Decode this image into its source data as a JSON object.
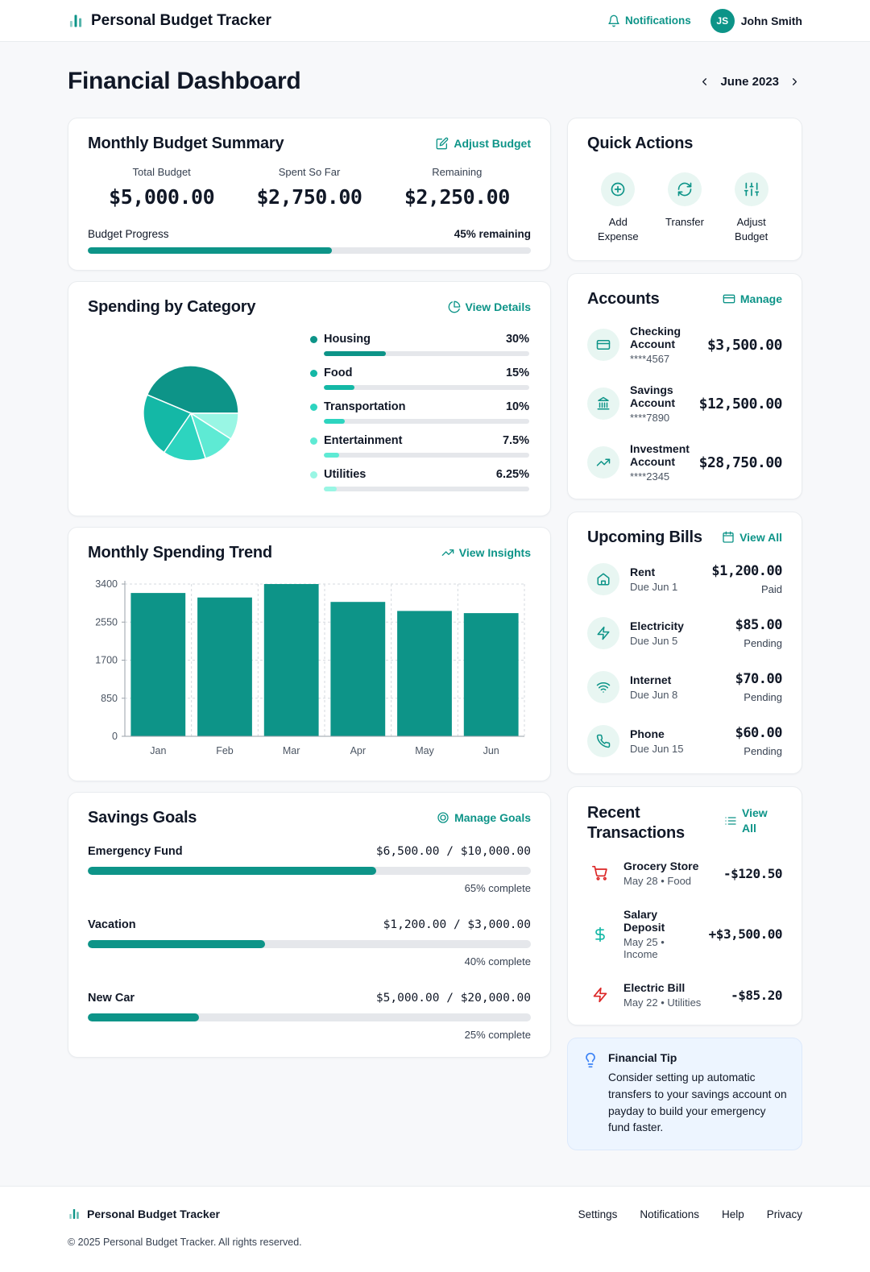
{
  "colors": {
    "primary": "#0d9488",
    "pie": [
      "#0d9488",
      "#14b8a6",
      "#2dd4bf",
      "#5eead4",
      "#99f6e4"
    ],
    "expense": "#dc2626",
    "income": "#14b8a6",
    "tip_accent": "#3b82f6"
  },
  "header": {
    "app_title": "Personal Budget Tracker",
    "notifications_label": "Notifications",
    "user_initials": "JS",
    "user_name": "John Smith"
  },
  "page": {
    "title": "Financial Dashboard",
    "month": "June 2023"
  },
  "budget_summary": {
    "title": "Monthly Budget Summary",
    "action": "Adjust Budget",
    "stats": [
      {
        "label": "Total Budget",
        "value": "$5,000.00"
      },
      {
        "label": "Spent So Far",
        "value": "$2,750.00"
      },
      {
        "label": "Remaining",
        "value": "$2,250.00"
      }
    ],
    "progress_label": "Budget Progress",
    "remaining_label": "45% remaining",
    "progress_pct": 55
  },
  "categories": {
    "title": "Spending by Category",
    "action": "View Details",
    "items": [
      {
        "label": "Housing",
        "pct_label": "30%",
        "pct": 30,
        "color": "#0d9488"
      },
      {
        "label": "Food",
        "pct_label": "15%",
        "pct": 15,
        "color": "#14b8a6"
      },
      {
        "label": "Transportation",
        "pct_label": "10%",
        "pct": 10,
        "color": "#2dd4bf"
      },
      {
        "label": "Entertainment",
        "pct_label": "7.5%",
        "pct": 7.5,
        "color": "#5eead4"
      },
      {
        "label": "Utilities",
        "pct_label": "6.25%",
        "pct": 6.25,
        "color": "#99f6e4"
      }
    ]
  },
  "trend": {
    "title": "Monthly Spending Trend",
    "action": "View Insights"
  },
  "chart_data": [
    {
      "type": "pie",
      "title": "Spending by Category",
      "labels": [
        "Housing",
        "Food",
        "Transportation",
        "Entertainment",
        "Utilities"
      ],
      "values": [
        30,
        15,
        10,
        7.5,
        6.25
      ],
      "unit": "percent of budget",
      "colors": [
        "#0d9488",
        "#14b8a6",
        "#2dd4bf",
        "#5eead4",
        "#99f6e4"
      ],
      "legend_position": "right"
    },
    {
      "type": "bar",
      "title": "Monthly Spending Trend",
      "categories": [
        "Jan",
        "Feb",
        "Mar",
        "Apr",
        "May",
        "Jun"
      ],
      "values": [
        3200,
        3100,
        3400,
        3000,
        2800,
        2750
      ],
      "ylim": [
        0,
        3400
      ],
      "yticks": [
        0,
        850,
        1700,
        2550,
        3400
      ],
      "grid": true,
      "bar_color": "#0d9488"
    }
  ],
  "savings": {
    "title": "Savings Goals",
    "action": "Manage Goals",
    "goals": [
      {
        "name": "Emergency Fund",
        "saved": "$6,500.00",
        "target": "$10,000.00",
        "pct": 65,
        "pct_label": "65% complete"
      },
      {
        "name": "Vacation",
        "saved": "$1,200.00",
        "target": "$3,000.00",
        "pct": 40,
        "pct_label": "40% complete"
      },
      {
        "name": "New Car",
        "saved": "$5,000.00",
        "target": "$20,000.00",
        "pct": 25,
        "pct_label": "25% complete"
      }
    ]
  },
  "quick_actions": {
    "title": "Quick Actions",
    "items": [
      {
        "label": "Add Expense"
      },
      {
        "label": "Transfer"
      },
      {
        "label": "Adjust Budget"
      }
    ]
  },
  "accounts": {
    "title": "Accounts",
    "action": "Manage",
    "items": [
      {
        "name": "Checking Account",
        "number": "****4567",
        "balance": "$3,500.00"
      },
      {
        "name": "Savings Account",
        "number": "****7890",
        "balance": "$12,500.00"
      },
      {
        "name": "Investment Account",
        "number": "****2345",
        "balance": "$28,750.00"
      }
    ]
  },
  "bills": {
    "title": "Upcoming Bills",
    "action": "View All",
    "items": [
      {
        "name": "Rent",
        "due": "Due Jun 1",
        "amount": "$1,200.00",
        "status": "Paid"
      },
      {
        "name": "Electricity",
        "due": "Due Jun 5",
        "amount": "$85.00",
        "status": "Pending"
      },
      {
        "name": "Internet",
        "due": "Due Jun 8",
        "amount": "$70.00",
        "status": "Pending"
      },
      {
        "name": "Phone",
        "due": "Due Jun 15",
        "amount": "$60.00",
        "status": "Pending"
      }
    ]
  },
  "transactions": {
    "title": "Recent Transactions",
    "action": "View All",
    "items": [
      {
        "name": "Grocery Store",
        "meta": "May 28 • Food",
        "amount": "-$120.50",
        "type": "expense"
      },
      {
        "name": "Salary Deposit",
        "meta": "May 25 • Income",
        "amount": "+$3,500.00",
        "type": "income"
      },
      {
        "name": "Electric Bill",
        "meta": "May 22 • Utilities",
        "amount": "-$85.20",
        "type": "expense"
      }
    ]
  },
  "tip": {
    "title": "Financial Tip",
    "text": "Consider setting up automatic transfers to your savings account on payday to build your emergency fund faster."
  },
  "footer": {
    "brand": "Personal Budget Tracker",
    "links": [
      {
        "label": "Settings"
      },
      {
        "label": "Notifications"
      },
      {
        "label": "Help"
      },
      {
        "label": "Privacy"
      }
    ],
    "copyright": "© 2025 Personal Budget Tracker. All rights reserved."
  }
}
